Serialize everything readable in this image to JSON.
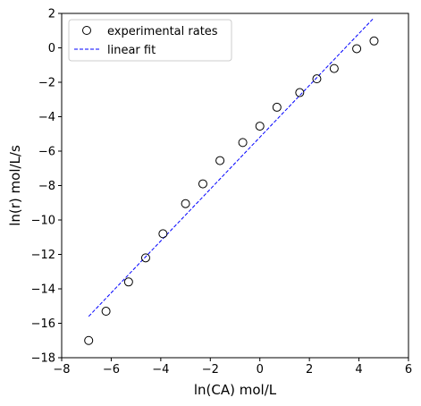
{
  "chart_data": {
    "type": "scatter",
    "xlabel": "ln(CA) mol/L",
    "ylabel": "ln(r) mol/L/s",
    "xlim": [
      -8,
      6
    ],
    "ylim": [
      -18,
      2
    ],
    "xticks": [
      -8,
      -6,
      -4,
      -2,
      0,
      2,
      4,
      6
    ],
    "yticks": [
      2,
      0,
      -2,
      -4,
      -6,
      -8,
      -10,
      -12,
      -14,
      -16,
      -18
    ],
    "grid": false,
    "legend_position": "top-left",
    "series": [
      {
        "name": "experimental rates",
        "kind": "scatter",
        "marker": "open-circle",
        "color": "#000000",
        "x": [
          -6.91,
          -6.21,
          -5.3,
          -4.61,
          -3.91,
          -3.0,
          -2.3,
          -1.61,
          -0.69,
          0.0,
          0.69,
          1.61,
          2.3,
          3.0,
          3.91,
          4.61
        ],
        "y": [
          -17.0,
          -15.3,
          -13.6,
          -12.2,
          -10.8,
          -9.05,
          -7.9,
          -6.55,
          -5.5,
          -4.55,
          -3.45,
          -2.6,
          -1.8,
          -1.2,
          -0.05,
          0.4
        ]
      },
      {
        "name": "linear fit",
        "kind": "line",
        "style": "dashed",
        "color": "#0000ff",
        "x": [
          -6.91,
          4.61
        ],
        "y": [
          -15.6,
          1.75
        ]
      }
    ]
  }
}
